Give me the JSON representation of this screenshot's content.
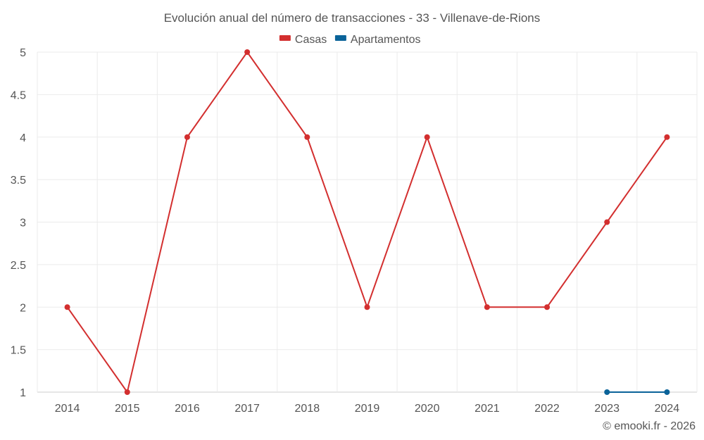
{
  "chart_data": {
    "type": "line",
    "title": "Evolución anual del número de transacciones - 33 - Villenave-de-Rions",
    "xlabel": "",
    "ylabel": "",
    "categories": [
      "2014",
      "2015",
      "2016",
      "2017",
      "2018",
      "2019",
      "2020",
      "2021",
      "2022",
      "2023",
      "2024"
    ],
    "ylim": [
      1,
      5
    ],
    "yticks": [
      1,
      1.5,
      2,
      2.5,
      3,
      3.5,
      4,
      4.5,
      5
    ],
    "ytick_labels": [
      "1",
      "1.5",
      "2",
      "2.5",
      "3",
      "3.5",
      "4",
      "4.5",
      "5"
    ],
    "grid": true,
    "legend_position": "top-center",
    "series": [
      {
        "name": "Casas",
        "color": "#d32f2f",
        "values": [
          2,
          1,
          4,
          5,
          4,
          2,
          4,
          2,
          2,
          3,
          4
        ]
      },
      {
        "name": "Apartamentos",
        "color": "#0a6399",
        "values": [
          null,
          null,
          null,
          null,
          null,
          null,
          null,
          null,
          null,
          1,
          1
        ]
      }
    ]
  },
  "credit": "© emooki.fr - 2026"
}
